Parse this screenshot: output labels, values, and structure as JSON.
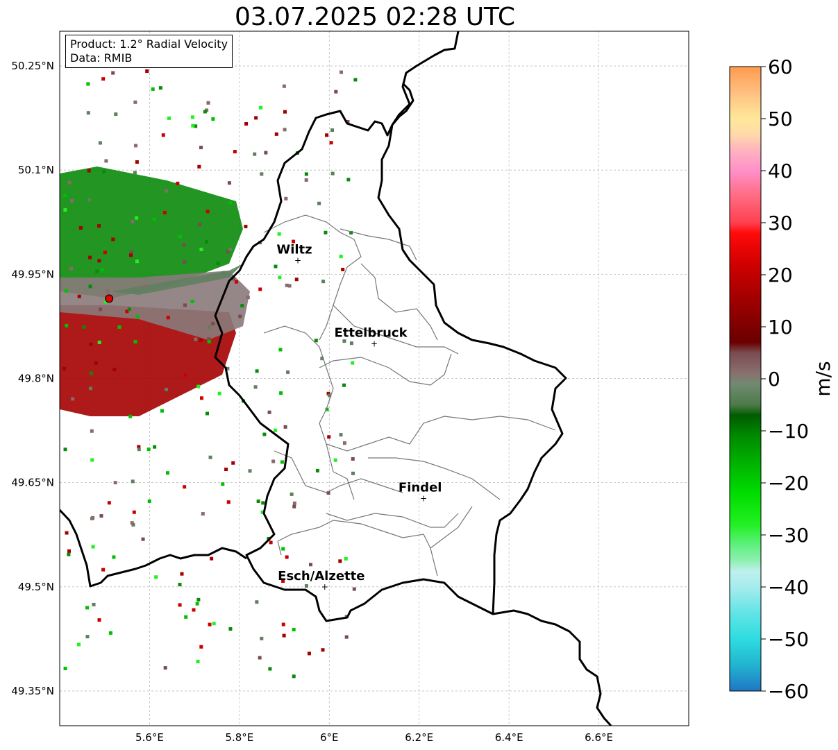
{
  "title": "03.07.2025 02:28 UTC",
  "info": {
    "product": "Product: 1.2° Radial Velocity",
    "data": "Data: RMIB"
  },
  "map": {
    "lon_range": [
      5.4,
      6.8
    ],
    "lat_range": [
      49.3,
      50.3
    ],
    "x_ticks": [
      {
        "value": 5.6,
        "label": "5.6°E"
      },
      {
        "value": 5.8,
        "label": "5.8°E"
      },
      {
        "value": 6.0,
        "label": "6°E"
      },
      {
        "value": 6.2,
        "label": "6.2°E"
      },
      {
        "value": 6.4,
        "label": "6.4°E"
      },
      {
        "value": 6.6,
        "label": "6.6°E"
      }
    ],
    "y_ticks": [
      {
        "value": 50.25,
        "label": "50.25°N"
      },
      {
        "value": 50.1,
        "label": "50.1°N"
      },
      {
        "value": 49.95,
        "label": "49.95°N"
      },
      {
        "value": 49.8,
        "label": "49.8°N"
      },
      {
        "value": 49.65,
        "label": "49.65°N"
      },
      {
        "value": 49.5,
        "label": "49.5°N"
      },
      {
        "value": 49.35,
        "label": "49.35°N"
      }
    ],
    "grid": true,
    "radar_site": {
      "lon": 5.51,
      "lat": 49.915,
      "color": "#dd0000"
    },
    "cities": [
      {
        "name": "Wiltz",
        "lon": 5.93,
        "lat": 49.97
      },
      {
        "name": "Ettelbruck",
        "lon": 6.1,
        "lat": 49.85
      },
      {
        "name": "Findel",
        "lon": 6.21,
        "lat": 49.627
      },
      {
        "name": "Esch/Alzette",
        "lon": 5.99,
        "lat": 49.5
      }
    ]
  },
  "colorbar": {
    "label": "m/s",
    "min": -60,
    "max": 60,
    "ticks": [
      {
        "value": 60,
        "label": "60"
      },
      {
        "value": 50,
        "label": "50"
      },
      {
        "value": 40,
        "label": "40"
      },
      {
        "value": 30,
        "label": "30"
      },
      {
        "value": 20,
        "label": "20"
      },
      {
        "value": 10,
        "label": "10"
      },
      {
        "value": 0,
        "label": "0"
      },
      {
        "value": -10,
        "label": "−10"
      },
      {
        "value": -20,
        "label": "−20"
      },
      {
        "value": -30,
        "label": "−30"
      },
      {
        "value": -40,
        "label": "−40"
      },
      {
        "value": -50,
        "label": "−50"
      },
      {
        "value": -60,
        "label": "−60"
      }
    ],
    "stops": [
      {
        "value": -60,
        "color": "#1f77c4"
      },
      {
        "value": -55,
        "color": "#22b4d0"
      },
      {
        "value": -50,
        "color": "#2edce0"
      },
      {
        "value": -45,
        "color": "#62e4e6"
      },
      {
        "value": -40,
        "color": "#a6eced"
      },
      {
        "value": -37,
        "color": "#bff0ef"
      },
      {
        "value": -35,
        "color": "#8ff0b0"
      },
      {
        "value": -32,
        "color": "#60f080"
      },
      {
        "value": -28,
        "color": "#22f022"
      },
      {
        "value": -22,
        "color": "#00dd00"
      },
      {
        "value": -16,
        "color": "#00b000"
      },
      {
        "value": -11,
        "color": "#008a00"
      },
      {
        "value": -7,
        "color": "#005c00"
      },
      {
        "value": -5,
        "color": "#4e7a4a"
      },
      {
        "value": -1,
        "color": "#708a70"
      },
      {
        "value": 1,
        "color": "#8a7070"
      },
      {
        "value": 5,
        "color": "#7a4c50"
      },
      {
        "value": 7,
        "color": "#6a0000"
      },
      {
        "value": 14,
        "color": "#980000"
      },
      {
        "value": 22,
        "color": "#d00000"
      },
      {
        "value": 28,
        "color": "#ff0a0a"
      },
      {
        "value": 30,
        "color": "#ff4050"
      },
      {
        "value": 35,
        "color": "#ff6a80"
      },
      {
        "value": 40,
        "color": "#ff90c8"
      },
      {
        "value": 44,
        "color": "#ffb4c0"
      },
      {
        "value": 47,
        "color": "#ffdaa8"
      },
      {
        "value": 50,
        "color": "#ffe89a"
      },
      {
        "value": 55,
        "color": "#ffc080"
      },
      {
        "value": 60,
        "color": "#ff9a50"
      }
    ]
  }
}
